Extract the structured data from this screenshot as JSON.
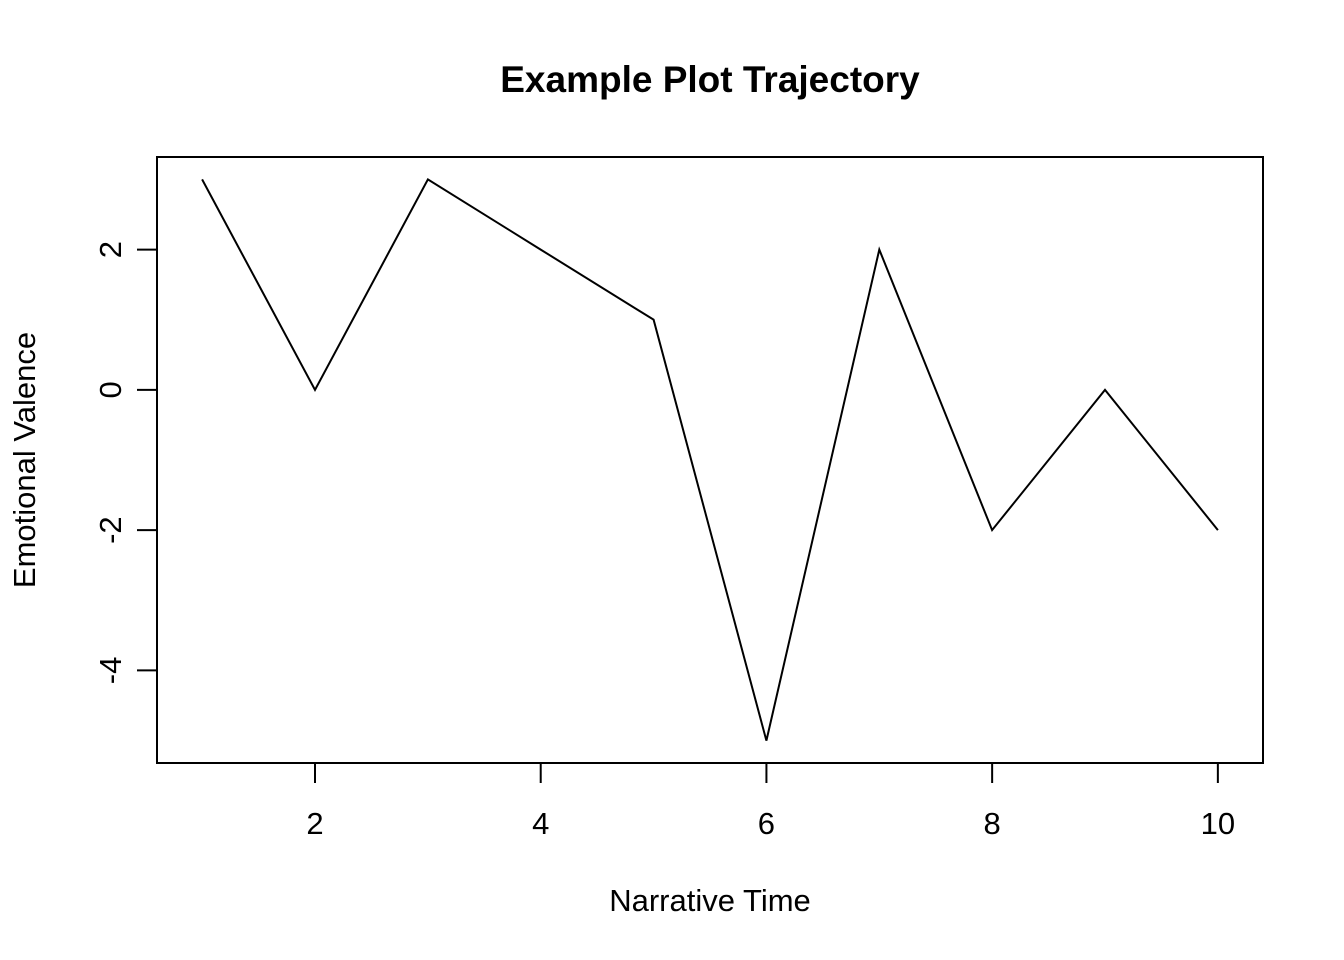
{
  "chart_data": {
    "type": "line",
    "title": "Example Plot Trajectory",
    "xlabel": "Narrative Time",
    "ylabel": "Emotional Valence",
    "x": [
      1,
      2,
      3,
      4,
      5,
      6,
      7,
      8,
      9,
      10
    ],
    "series": [
      {
        "values": [
          3,
          0,
          3,
          2,
          1,
          -5,
          2,
          -2,
          0,
          -2
        ]
      }
    ],
    "xlim": [
      0.6,
      10.4
    ],
    "ylim": [
      -5.32,
      3.32
    ],
    "xticks": [
      2,
      4,
      6,
      8,
      10
    ],
    "xtick_labels": [
      "2",
      "4",
      "6",
      "8",
      "10"
    ],
    "yticks": [
      -4,
      -2,
      0,
      2
    ],
    "ytick_labels": [
      "-4",
      "-2",
      "0",
      "2"
    ],
    "grid": false,
    "legend": "none",
    "line_color": "#000000"
  }
}
